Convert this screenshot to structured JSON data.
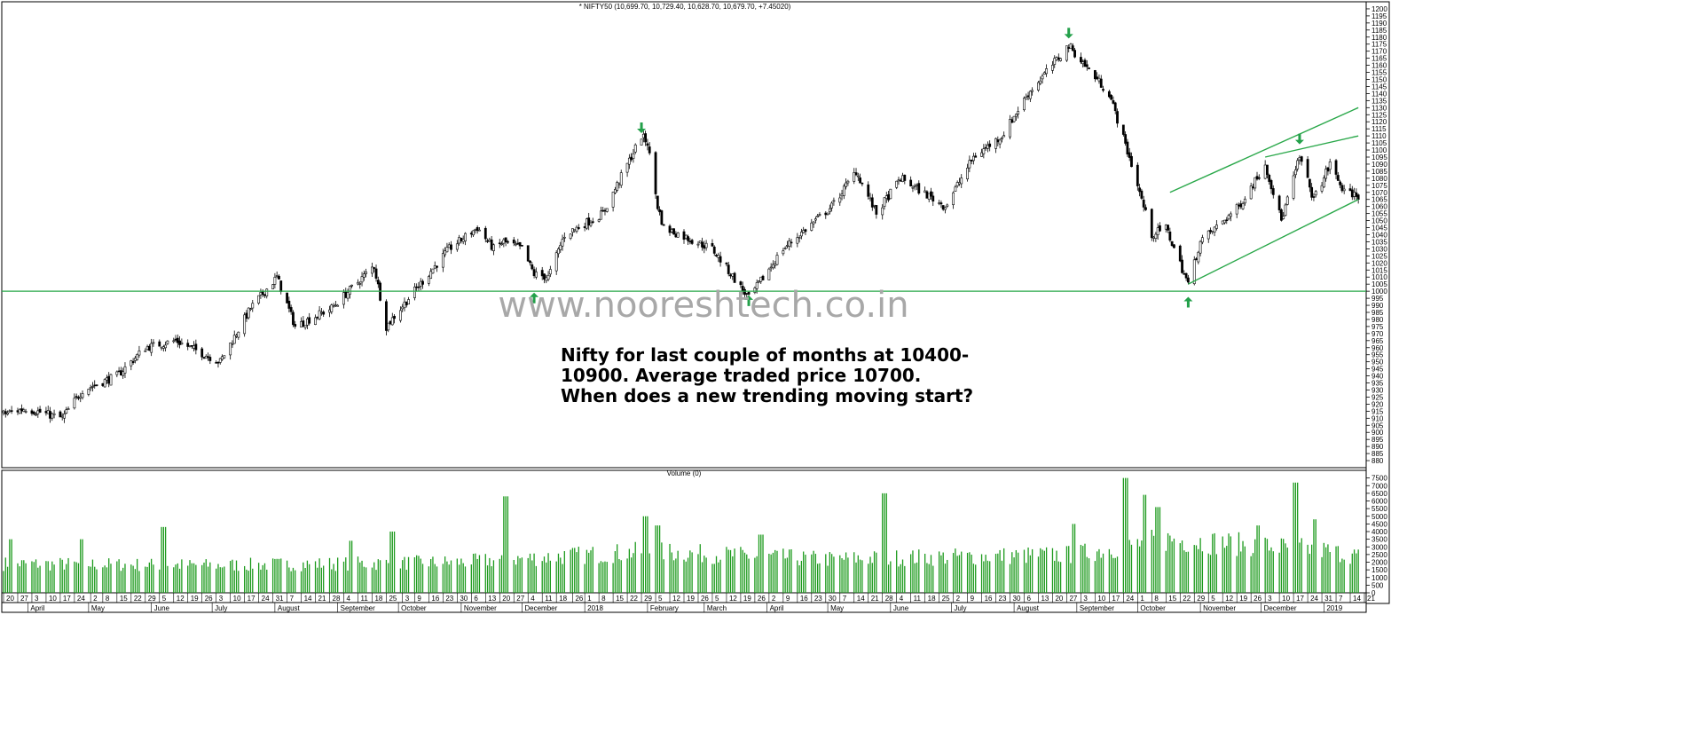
{
  "header": {
    "price_title": "* NIFTY50 (10,699.70, 10,729.40, 10,628.70, 10,679.70, +7.45020)",
    "volume_title": "Volume (0)"
  },
  "watermark": "www.nooreshtech.co.in",
  "annotation": [
    "Nifty for last couple of months at 10400-",
    "10900. Average traded price 10700.",
    "When does a new trending moving start?"
  ],
  "colors": {
    "line": "#2aa84a",
    "arrow": "#23a04a",
    "volume": "#1c9a1c",
    "candle": "#000000",
    "frame": "#000000"
  },
  "chart_data": [
    {
      "type": "candlestick",
      "title": "* NIFTY50 (10,699.70, 10,729.40, 10,628.70, 10,679.70, +7.45020)",
      "ohlc_last": {
        "open": 10699.7,
        "high": 10729.4,
        "low": 10628.7,
        "close": 10679.7,
        "change": 7.4502
      },
      "x_range": [
        "2017-03-20",
        "2019-01-18"
      ],
      "y_axis_side": "right",
      "ylim": [
        8750,
        12050
      ],
      "y_ticks": [
        8800,
        8850,
        8900,
        8950,
        9000,
        9050,
        9100,
        9150,
        9200,
        9250,
        9300,
        9350,
        9400,
        9450,
        9500,
        9550,
        9600,
        9650,
        9700,
        9750,
        9800,
        9850,
        9900,
        9950,
        10000,
        10050,
        10100,
        10150,
        10200,
        10250,
        10300,
        10350,
        10400,
        10450,
        10500,
        10550,
        10600,
        10650,
        10700,
        10750,
        10800,
        10850,
        10900,
        10950,
        11000,
        11050,
        11100,
        11150,
        11200,
        11250,
        11300,
        11350,
        11400,
        11450,
        11500,
        11550,
        11600,
        11650,
        11700,
        11750,
        11800,
        11850,
        11900,
        11950,
        12000
      ],
      "y_tick_labels": [
        "880",
        "885",
        "890",
        "895",
        "900",
        "905",
        "910",
        "915",
        "920",
        "925",
        "930",
        "935",
        "940",
        "945",
        "950",
        "955",
        "960",
        "965",
        "970",
        "975",
        "980",
        "985",
        "990",
        "995",
        "1000",
        "1005",
        "1010",
        "1015",
        "1020",
        "1025",
        "1030",
        "1035",
        "1040",
        "1045",
        "1050",
        "1055",
        "1060",
        "1065",
        "1070",
        "1075",
        "1080",
        "1085",
        "1090",
        "1095",
        "1100",
        "1105",
        "1110",
        "1115",
        "1120",
        "1125",
        "1130",
        "1135",
        "1140",
        "1145",
        "1150",
        "1155",
        "1160",
        "1165",
        "1170",
        "1175",
        "1180",
        "1185",
        "1190",
        "1195",
        "1200"
      ],
      "close_path": [
        [
          "2017-03-20",
          9130
        ],
        [
          "2017-03-31",
          9170
        ],
        [
          "2017-04-18",
          9100
        ],
        [
          "2017-04-28",
          9300
        ],
        [
          "2017-05-15",
          9400
        ],
        [
          "2017-05-29",
          9600
        ],
        [
          "2017-06-13",
          9650
        ],
        [
          "2017-07-05",
          9500
        ],
        [
          "2017-07-20",
          9880
        ],
        [
          "2017-08-02",
          10100
        ],
        [
          "2017-08-11",
          9750
        ],
        [
          "2017-08-29",
          9880
        ],
        [
          "2017-09-19",
          10180
        ],
        [
          "2017-09-25",
          9750
        ],
        [
          "2017-10-06",
          9950
        ],
        [
          "2017-10-26",
          10300
        ],
        [
          "2017-11-09",
          10450
        ],
        [
          "2017-11-17",
          10300
        ],
        [
          "2017-11-22",
          10350
        ],
        [
          "2017-12-01",
          10300
        ],
        [
          "2017-12-07",
          10120
        ],
        [
          "2017-12-14",
          10100
        ],
        [
          "2017-12-22",
          10400
        ],
        [
          "2018-01-10",
          10550
        ],
        [
          "2018-01-29",
          11100
        ],
        [
          "2018-02-01",
          11050
        ],
        [
          "2018-02-06",
          10600
        ],
        [
          "2018-02-09",
          10450
        ],
        [
          "2018-03-05",
          10300
        ],
        [
          "2018-03-23",
          9950
        ],
        [
          "2018-04-09",
          10300
        ],
        [
          "2018-05-03",
          10600
        ],
        [
          "2018-05-15",
          10850
        ],
        [
          "2018-05-25",
          10550
        ],
        [
          "2018-06-06",
          10800
        ],
        [
          "2018-06-28",
          10600
        ],
        [
          "2018-07-12",
          10950
        ],
        [
          "2018-07-26",
          11100
        ],
        [
          "2018-08-08",
          11400
        ],
        [
          "2018-08-28",
          11740
        ],
        [
          "2018-09-05",
          11600
        ],
        [
          "2018-09-17",
          11400
        ],
        [
          "2018-09-28",
          10900
        ],
        [
          "2018-10-08",
          10400
        ],
        [
          "2018-10-15",
          10450
        ],
        [
          "2018-10-26",
          10050
        ],
        [
          "2018-11-01",
          10350
        ],
        [
          "2018-11-20",
          10600
        ],
        [
          "2018-12-03",
          10900
        ],
        [
          "2018-12-11",
          10500
        ],
        [
          "2018-12-20",
          10950
        ],
        [
          "2018-12-27",
          10650
        ],
        [
          "2019-01-04",
          10900
        ],
        [
          "2019-01-11",
          10700
        ],
        [
          "2019-01-18",
          10680
        ]
      ],
      "horizontal_support": 10000,
      "trend_lines": [
        {
          "name": "channel-upper",
          "points": [
            [
              "2018-10-17",
              10700
            ],
            [
              "2019-01-18",
              11300
            ]
          ]
        },
        {
          "name": "channel-upper-2",
          "points": [
            [
              "2018-12-03",
              10950
            ],
            [
              "2019-01-18",
              11100
            ]
          ]
        },
        {
          "name": "channel-lower",
          "points": [
            [
              "2018-10-26",
              10050
            ],
            [
              "2019-01-18",
              10650
            ]
          ]
        }
      ],
      "arrows": [
        {
          "direction": "down",
          "x": "2018-01-29",
          "y": 11120
        },
        {
          "direction": "down",
          "x": "2018-08-28",
          "y": 11790
        },
        {
          "direction": "down",
          "x": "2018-12-20",
          "y": 11040
        },
        {
          "direction": "up",
          "x": "2017-12-07",
          "y": 9990
        },
        {
          "direction": "up",
          "x": "2018-03-23",
          "y": 9970
        },
        {
          "direction": "up",
          "x": "2018-10-26",
          "y": 9960
        }
      ]
    },
    {
      "type": "bar",
      "title": "Volume (0)",
      "y_axis_side": "right",
      "ylim": [
        0,
        8000
      ],
      "y_ticks": [
        0,
        500,
        1000,
        1500,
        2000,
        2500,
        3000,
        3500,
        4000,
        4500,
        5000,
        5500,
        6000,
        6500,
        7000,
        7500
      ],
      "y_tick_labels": [
        "0",
        "500",
        "1000",
        "1500",
        "2000",
        "2500",
        "3000",
        "3500",
        "4000",
        "4500",
        "5000",
        "5500",
        "6000",
        "6500",
        "7000",
        "7500"
      ],
      "typical_volume": [
        [
          "2017-03-20",
          1900
        ],
        [
          "2017-06-30",
          1800
        ],
        [
          "2017-10-31",
          2000
        ],
        [
          "2018-01-31",
          2700
        ],
        [
          "2018-04-30",
          2200
        ],
        [
          "2018-08-31",
          2500
        ],
        [
          "2018-10-15",
          3500
        ],
        [
          "2018-12-31",
          2800
        ],
        [
          "2019-01-18",
          2400
        ]
      ],
      "spikes": [
        [
          "2017-03-24",
          3500
        ],
        [
          "2017-04-28",
          3500
        ],
        [
          "2017-06-07",
          4300
        ],
        [
          "2017-09-08",
          3400
        ],
        [
          "2017-09-28",
          4000
        ],
        [
          "2017-11-23",
          6300
        ],
        [
          "2017-11-24",
          4500
        ],
        [
          "2018-01-31",
          5000
        ],
        [
          "2018-02-06",
          4400
        ],
        [
          "2018-03-29",
          3800
        ],
        [
          "2018-05-29",
          6500
        ],
        [
          "2018-08-31",
          4500
        ],
        [
          "2018-09-25",
          7500
        ],
        [
          "2018-10-05",
          6400
        ],
        [
          "2018-10-11",
          5600
        ],
        [
          "2018-11-30",
          4400
        ],
        [
          "2018-12-18",
          7200
        ],
        [
          "2018-12-28",
          4800
        ]
      ]
    }
  ],
  "x_axis": {
    "day_ticks": [
      [
        "2017-03-20",
        "20"
      ],
      [
        "2017-03-27",
        "27"
      ],
      [
        "2017-04-03",
        "3"
      ],
      [
        "2017-04-10",
        "10"
      ],
      [
        "2017-04-17",
        "17"
      ],
      [
        "2017-04-24",
        "24"
      ],
      [
        "2017-05-02",
        "2"
      ],
      [
        "2017-05-08",
        "8"
      ],
      [
        "2017-05-15",
        "15"
      ],
      [
        "2017-05-22",
        "22"
      ],
      [
        "2017-05-29",
        "29"
      ],
      [
        "2017-06-05",
        "5"
      ],
      [
        "2017-06-12",
        "12"
      ],
      [
        "2017-06-19",
        "19"
      ],
      [
        "2017-06-26",
        "26"
      ],
      [
        "2017-07-03",
        "3"
      ],
      [
        "2017-07-10",
        "10"
      ],
      [
        "2017-07-17",
        "17"
      ],
      [
        "2017-07-24",
        "24"
      ],
      [
        "2017-07-31",
        "31"
      ],
      [
        "2017-08-07",
        "7"
      ],
      [
        "2017-08-14",
        "14"
      ],
      [
        "2017-08-21",
        "21"
      ],
      [
        "2017-08-28",
        "28"
      ],
      [
        "2017-09-04",
        "4"
      ],
      [
        "2017-09-11",
        "11"
      ],
      [
        "2017-09-18",
        "18"
      ],
      [
        "2017-09-25",
        "25"
      ],
      [
        "2017-10-03",
        "3"
      ],
      [
        "2017-10-09",
        "9"
      ],
      [
        "2017-10-16",
        "16"
      ],
      [
        "2017-10-23",
        "23"
      ],
      [
        "2017-10-30",
        "30"
      ],
      [
        "2017-11-06",
        "6"
      ],
      [
        "2017-11-13",
        "13"
      ],
      [
        "2017-11-20",
        "20"
      ],
      [
        "2017-11-27",
        "27"
      ],
      [
        "2017-12-04",
        "4"
      ],
      [
        "2017-12-11",
        "11"
      ],
      [
        "2017-12-18",
        "18"
      ],
      [
        "2017-12-26",
        "26"
      ],
      [
        "2018-01-01",
        "1"
      ],
      [
        "2018-01-08",
        "8"
      ],
      [
        "2018-01-15",
        "15"
      ],
      [
        "2018-01-22",
        "22"
      ],
      [
        "2018-01-29",
        "29"
      ],
      [
        "2018-02-05",
        "5"
      ],
      [
        "2018-02-12",
        "12"
      ],
      [
        "2018-02-19",
        "19"
      ],
      [
        "2018-02-26",
        "26"
      ],
      [
        "2018-03-05",
        "5"
      ],
      [
        "2018-03-12",
        "12"
      ],
      [
        "2018-03-19",
        "19"
      ],
      [
        "2018-03-26",
        "26"
      ],
      [
        "2018-04-02",
        "2"
      ],
      [
        "2018-04-09",
        "9"
      ],
      [
        "2018-04-16",
        "16"
      ],
      [
        "2018-04-23",
        "23"
      ],
      [
        "2018-04-30",
        "30"
      ],
      [
        "2018-05-07",
        "7"
      ],
      [
        "2018-05-14",
        "14"
      ],
      [
        "2018-05-21",
        "21"
      ],
      [
        "2018-05-28",
        "28"
      ],
      [
        "2018-06-04",
        "4"
      ],
      [
        "2018-06-11",
        "11"
      ],
      [
        "2018-06-18",
        "18"
      ],
      [
        "2018-06-25",
        "25"
      ],
      [
        "2018-07-02",
        "2"
      ],
      [
        "2018-07-09",
        "9"
      ],
      [
        "2018-07-16",
        "16"
      ],
      [
        "2018-07-23",
        "23"
      ],
      [
        "2018-07-30",
        "30"
      ],
      [
        "2018-08-06",
        "6"
      ],
      [
        "2018-08-13",
        "13"
      ],
      [
        "2018-08-20",
        "20"
      ],
      [
        "2018-08-27",
        "27"
      ],
      [
        "2018-09-03",
        "3"
      ],
      [
        "2018-09-10",
        "10"
      ],
      [
        "2018-09-17",
        "17"
      ],
      [
        "2018-09-24",
        "24"
      ],
      [
        "2018-10-01",
        "1"
      ],
      [
        "2018-10-08",
        "8"
      ],
      [
        "2018-10-15",
        "15"
      ],
      [
        "2018-10-22",
        "22"
      ],
      [
        "2018-10-29",
        "29"
      ],
      [
        "2018-11-05",
        "5"
      ],
      [
        "2018-11-12",
        "12"
      ],
      [
        "2018-11-19",
        "19"
      ],
      [
        "2018-11-26",
        "26"
      ],
      [
        "2018-12-03",
        "3"
      ],
      [
        "2018-12-10",
        "10"
      ],
      [
        "2018-12-17",
        "17"
      ],
      [
        "2018-12-24",
        "24"
      ],
      [
        "2018-12-31",
        "31"
      ],
      [
        "2019-01-07",
        "7"
      ],
      [
        "2019-01-14",
        "14"
      ],
      [
        "2019-01-21",
        "21"
      ]
    ],
    "month_labels": [
      [
        "2017-04-01",
        "April"
      ],
      [
        "2017-05-01",
        "May"
      ],
      [
        "2017-06-01",
        "June"
      ],
      [
        "2017-07-01",
        "July"
      ],
      [
        "2017-08-01",
        "August"
      ],
      [
        "2017-09-01",
        "September"
      ],
      [
        "2017-10-01",
        "October"
      ],
      [
        "2017-11-01",
        "November"
      ],
      [
        "2017-12-01",
        "December"
      ],
      [
        "2018-01-01",
        "2018"
      ],
      [
        "2018-02-01",
        "February"
      ],
      [
        "2018-03-01",
        "March"
      ],
      [
        "2018-04-01",
        "April"
      ],
      [
        "2018-05-01",
        "May"
      ],
      [
        "2018-06-01",
        "June"
      ],
      [
        "2018-07-01",
        "July"
      ],
      [
        "2018-08-01",
        "August"
      ],
      [
        "2018-09-01",
        "September"
      ],
      [
        "2018-10-01",
        "October"
      ],
      [
        "2018-11-01",
        "November"
      ],
      [
        "2018-12-01",
        "December"
      ],
      [
        "2019-01-01",
        "2019"
      ]
    ]
  }
}
